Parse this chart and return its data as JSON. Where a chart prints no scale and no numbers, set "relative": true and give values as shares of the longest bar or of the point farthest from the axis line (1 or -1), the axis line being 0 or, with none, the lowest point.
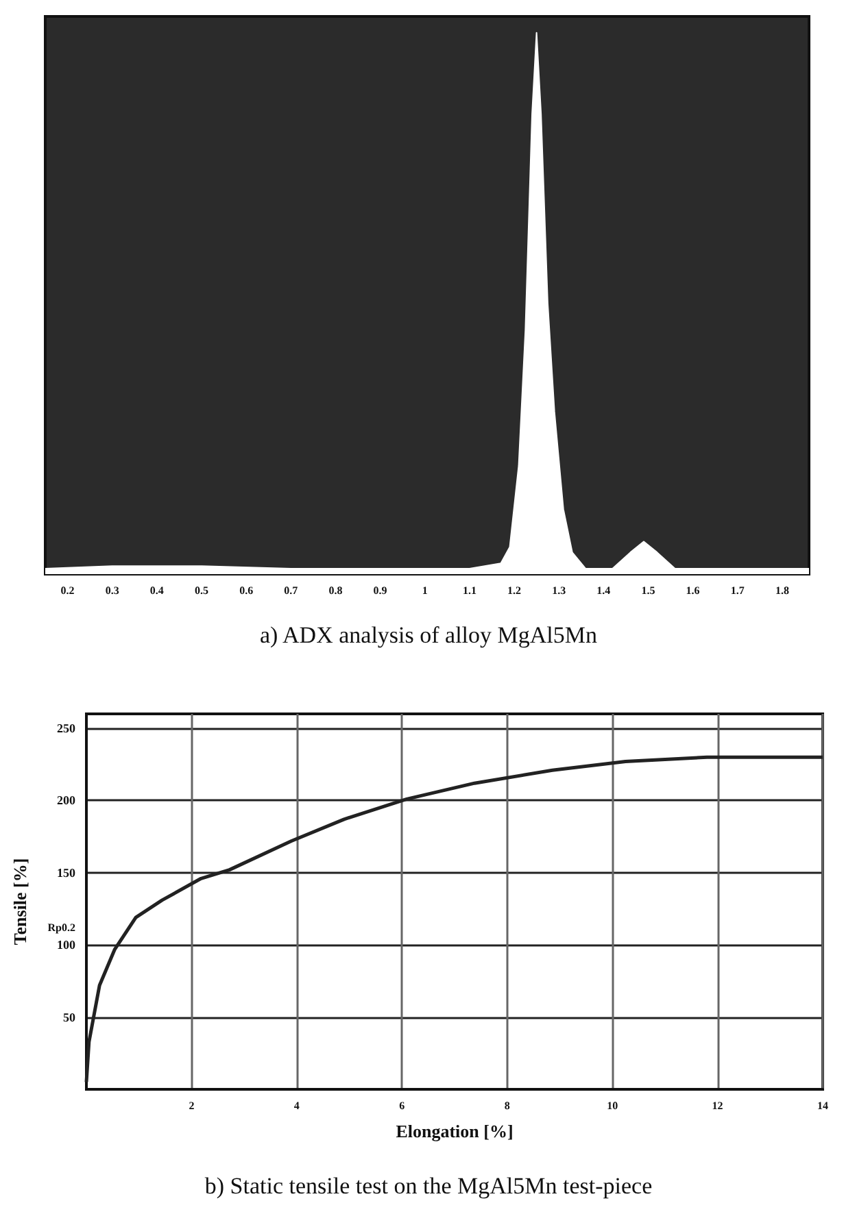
{
  "chart_data": [
    {
      "type": "area",
      "title": "a) ADX analysis of alloy MgAl5Mn",
      "relative": true,
      "color": "#ffffff",
      "grid": false,
      "x": [
        0.15,
        0.3,
        0.5,
        0.7,
        1.0,
        1.1,
        1.17,
        1.19,
        1.21,
        1.225,
        1.24,
        1.25,
        1.26,
        1.275,
        1.29,
        1.31,
        1.33,
        1.36,
        1.42,
        1.46,
        1.49,
        1.52,
        1.56,
        1.7,
        1.86
      ],
      "values": [
        0.01,
        0.015,
        0.015,
        0.01,
        0.01,
        0.01,
        0.02,
        0.05,
        0.2,
        0.45,
        0.85,
        1.0,
        0.85,
        0.5,
        0.3,
        0.12,
        0.04,
        0.01,
        0.01,
        0.04,
        0.06,
        0.04,
        0.01,
        0.01,
        0.01
      ],
      "xlim": [
        0.15,
        1.86
      ],
      "xticks": [
        0.2,
        0.3,
        0.4,
        0.5,
        0.6,
        0.7,
        0.8,
        0.9,
        1,
        1.1,
        1.2,
        1.3,
        1.4,
        1.5,
        1.6,
        1.7,
        1.8
      ]
    },
    {
      "type": "line",
      "title": "b) Static tensile test on the MgAl5Mn test-piece",
      "xlabel": "Elongation [%]",
      "ylabel": "Tensile [%]",
      "color": "#222222",
      "grid": true,
      "marker": "none",
      "x": [
        0,
        0.05,
        0.25,
        0.54,
        0.94,
        1.44,
        2.18,
        2.72,
        3.9,
        4.9,
        6.09,
        7.38,
        8.86,
        10.25,
        11.8,
        14
      ],
      "values": [
        5,
        33,
        72,
        97,
        119,
        131,
        146,
        152,
        172,
        187,
        201,
        212,
        221,
        227,
        230,
        230
      ],
      "xlim": [
        0,
        14
      ],
      "ylim": [
        0,
        260
      ],
      "xticks": [
        2,
        4,
        6,
        8,
        10,
        12,
        14
      ],
      "yticks": [
        50,
        100,
        {
          "value": 112,
          "label": "Rp0.2"
        },
        150,
        200,
        250
      ]
    }
  ]
}
